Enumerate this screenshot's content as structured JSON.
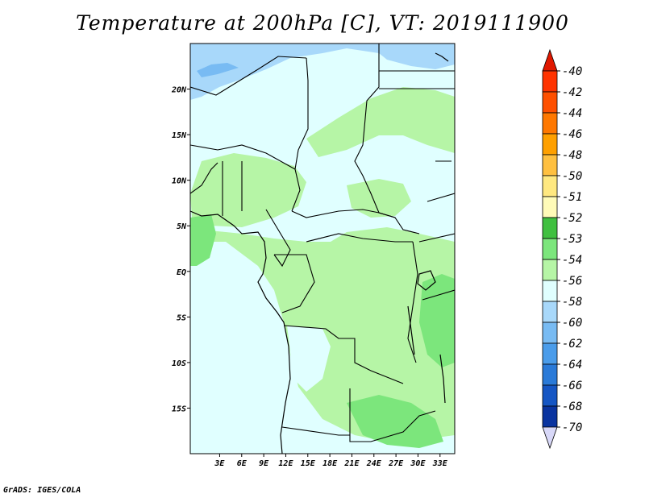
{
  "title": "Temperature at 200hPa [C], VT: 2019111900",
  "credit": "GrADS: IGES/COLA",
  "map": {
    "lat_range": [
      -20,
      25
    ],
    "lon_range": [
      -1,
      35
    ],
    "lat_ticks": [
      {
        "value": 20,
        "label": "20N"
      },
      {
        "value": 15,
        "label": "15N"
      },
      {
        "value": 10,
        "label": "10N"
      },
      {
        "value": 5,
        "label": "5N"
      },
      {
        "value": 0,
        "label": "EQ"
      },
      {
        "value": -5,
        "label": "5S"
      },
      {
        "value": -10,
        "label": "10S"
      },
      {
        "value": -15,
        "label": "15S"
      }
    ],
    "lon_ticks": [
      {
        "value": 3,
        "label": "3E"
      },
      {
        "value": 6,
        "label": "6E"
      },
      {
        "value": 9,
        "label": "9E"
      },
      {
        "value": 12,
        "label": "12E"
      },
      {
        "value": 15,
        "label": "15E"
      },
      {
        "value": 18,
        "label": "18E"
      },
      {
        "value": 21,
        "label": "21E"
      },
      {
        "value": 24,
        "label": "24E"
      },
      {
        "value": 27,
        "label": "27E"
      },
      {
        "value": 30,
        "label": "30E"
      },
      {
        "value": 33,
        "label": "33E"
      }
    ],
    "background_color": "#e0ffff"
  },
  "colorbar": {
    "levels": [
      {
        "label": "-40",
        "color": "#ff3300"
      },
      {
        "label": "-42",
        "color": "#ff5000"
      },
      {
        "label": "-44",
        "color": "#ff7800"
      },
      {
        "label": "-46",
        "color": "#ffa000"
      },
      {
        "label": "-48",
        "color": "#ffc040"
      },
      {
        "label": "-50",
        "color": "#ffe880"
      },
      {
        "label": "-51",
        "color": "#fffbb8"
      },
      {
        "label": "-52",
        "color": "#40c040"
      },
      {
        "label": "-53",
        "color": "#7ce67c"
      },
      {
        "label": "-54",
        "color": "#b6f5a6"
      },
      {
        "label": "-56",
        "color": "#e0ffff"
      },
      {
        "label": "-58",
        "color": "#a8d8fa"
      },
      {
        "label": "-60",
        "color": "#78bbf3"
      },
      {
        "label": "-62",
        "color": "#4a9cea"
      },
      {
        "label": "-64",
        "color": "#2a7ad8"
      },
      {
        "label": "-66",
        "color": "#1556c4"
      },
      {
        "label": "-68",
        "color": "#0a34a0"
      },
      {
        "label": "-70",
        "color": "#060f6a"
      }
    ],
    "top_triangle_color": "#e01800",
    "bottom_triangle_color": "#d8d8f8"
  }
}
